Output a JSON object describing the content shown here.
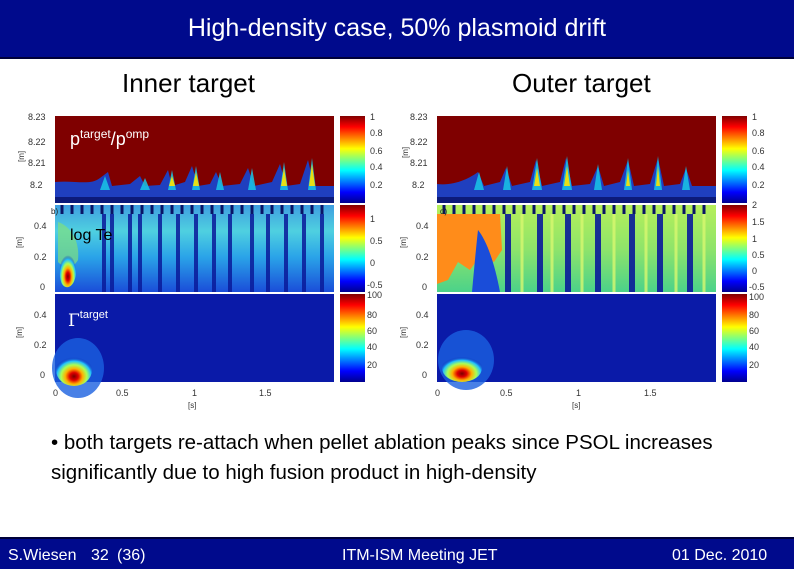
{
  "header": {
    "title": "High-density case, 50% plasmoid drift"
  },
  "columns": {
    "inner": "Inner target",
    "outer": "Outer target"
  },
  "panels": {
    "p_label_base": "p",
    "p_label_sup1": "target",
    "p_label_mid": "/p",
    "p_label_sup2": "omp",
    "te_label": "log Te",
    "gamma_symbol": "Γ",
    "gamma_sup": "target"
  },
  "axes": {
    "y_top_ticks": [
      "8.23",
      "8.22",
      "8.21",
      "8.2"
    ],
    "y_mid_ticks": [
      "0.4",
      "0.2",
      "0"
    ],
    "y_bot_ticks": [
      "0.4",
      "0.2",
      "0"
    ],
    "y_unit": "[m]",
    "x_ticks": [
      "0",
      "0.5",
      "1",
      "1.5"
    ],
    "x_unit": "[s]",
    "panel_letters": [
      "b)",
      "d)"
    ]
  },
  "colorbars": {
    "top": [
      "1",
      "0.8",
      "0.6",
      "0.4",
      "0.2"
    ],
    "mid_inner": [
      "1",
      "0.5",
      "0",
      "-0.5"
    ],
    "mid_outer": [
      "2",
      "1.5",
      "1",
      "0.5",
      "0",
      "-0.5"
    ],
    "bot": [
      "100",
      "80",
      "60",
      "40",
      "20"
    ]
  },
  "bullet": "• both targets re-attach when pellet ablation peaks since PSOL increases significantly due to high fusion product in high-density",
  "footer": {
    "author": "S.Wiesen",
    "page_num": "32",
    "page_total": "(36)",
    "meeting": "ITM-ISM Meeting JET",
    "date": "01 Dec. 2010"
  },
  "colors": {
    "accent": "#000a8c",
    "footer_text": "#ffffff"
  }
}
